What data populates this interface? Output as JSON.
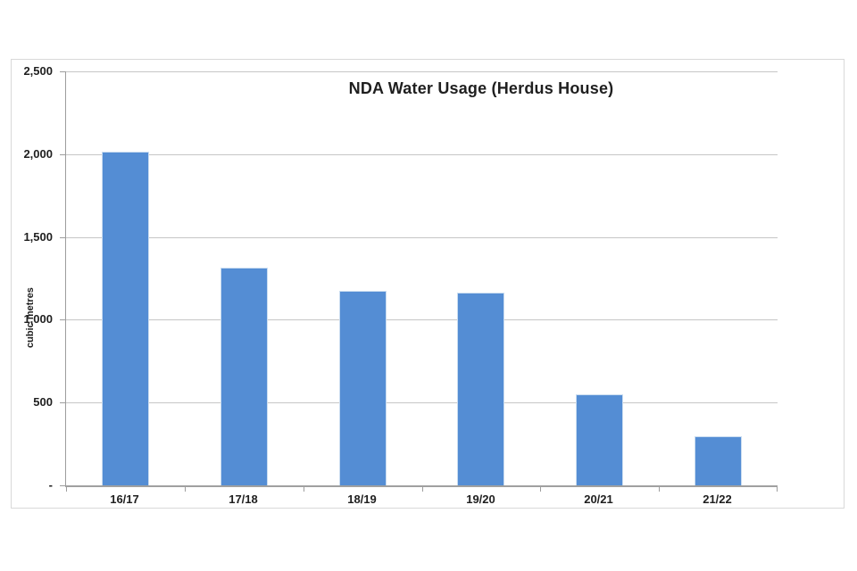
{
  "chart_data": {
    "type": "bar",
    "title": "NDA Water Usage (Herdus House)",
    "categories": [
      "16/17",
      "17/18",
      "18/19",
      "19/20",
      "20/21",
      "21/22"
    ],
    "values": [
      2015,
      1315,
      1175,
      1165,
      550,
      295
    ],
    "xlabel": "",
    "ylabel": "cubic metres",
    "ylim": [
      0,
      2500
    ],
    "ytick_interval": 500,
    "yticks": [
      {
        "value": 0,
        "label": "-"
      },
      {
        "value": 500,
        "label": "500"
      },
      {
        "value": 1000,
        "label": "1,000"
      },
      {
        "value": 1500,
        "label": "1,500"
      },
      {
        "value": 2000,
        "label": "2,000"
      },
      {
        "value": 2500,
        "label": "2,500"
      }
    ],
    "grid": true,
    "legend": false,
    "colors": {
      "bar": "#548DD4",
      "bar_border": "#c9dcf0",
      "gridline": "#c6c6c6",
      "axis": "#9d9d9d",
      "text": "#1f1f1f",
      "panel_border": "#d9d9d9",
      "background": "#ffffff"
    }
  }
}
